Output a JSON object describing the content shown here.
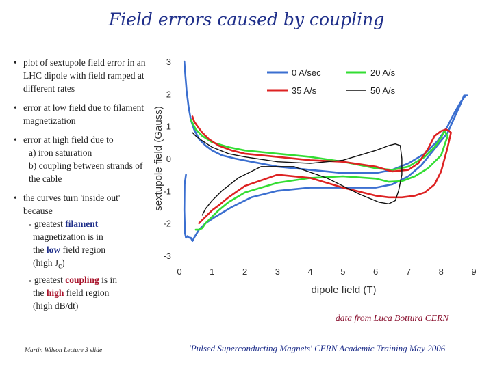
{
  "slide": {
    "title": "Field errors caused by coupling",
    "bullet1": "plot of sextupole field error in an LHC dipole with field ramped at different rates",
    "bullet2": "error at low field due to filament magnetization",
    "bullet3_main": "error at high field due to",
    "bullet3_a": "a) iron saturation",
    "bullet3_b": "b) coupling between strands of the cable",
    "bullet4_main": "the curves turn 'inside out' because",
    "b4_l1a": "- greatest ",
    "b4_l1b": "filament",
    "b4_l2": "magnetization is in",
    "b4_l3a": "the ",
    "b4_l3b": "low",
    "b4_l3c": " field region",
    "b4_l4a": "(high J",
    "b4_l4sub": "c",
    "b4_l4c": ")",
    "b4_l5a": "- greatest ",
    "b4_l5b": "coupling",
    "b4_l5c": " is in",
    "b4_l6a": "the ",
    "b4_l6b": "high",
    "b4_l6c": " field region",
    "b4_l7": "(high dB/dt)",
    "credit": "data from Luca Bottura CERN",
    "footer_left": "Martin Wilson Lecture 3 slide",
    "footer_right": "'Pulsed Superconducting Magnets' CERN Academic Training May 2006"
  },
  "chart_data": {
    "type": "line",
    "title": "",
    "xlabel": "dipole field (T)",
    "ylabel": "sextupole field (Gauss)",
    "xlim": [
      0,
      9
    ],
    "ylim": [
      -3,
      3
    ],
    "xticks": [
      "0",
      "1",
      "2",
      "3",
      "4",
      "5",
      "6",
      "7",
      "8",
      "9"
    ],
    "yticks": [
      "3",
      "2",
      "1",
      "0",
      "-1",
      "-2",
      "-3"
    ],
    "legend_position": "top-right",
    "series": [
      {
        "name": "0 A/sec",
        "color": "#3b6fd0",
        "x": [
          0.15,
          0.18,
          0.22,
          0.28,
          0.35,
          0.45,
          0.6,
          0.8,
          1.0,
          1.3,
          1.7,
          2.2,
          3,
          4,
          5,
          6,
          6.5,
          7,
          7.5,
          7.9,
          8.2,
          8.4,
          8.6,
          8.75,
          8.8,
          8.7,
          8.6,
          8.4,
          8.2,
          7.8,
          7.4,
          7,
          6.5,
          6,
          5,
          4,
          3,
          2.2,
          1.6,
          1.1,
          0.8,
          0.6,
          0.45,
          0.4,
          0.35,
          0.3,
          0.25,
          0.2,
          0.17,
          0.15,
          0.16,
          0.2
        ],
        "y": [
          3.0,
          2.6,
          2.1,
          1.6,
          1.2,
          0.9,
          0.6,
          0.4,
          0.25,
          0.1,
          0.0,
          -0.1,
          -0.25,
          -0.35,
          -0.45,
          -0.45,
          -0.35,
          -0.15,
          0.15,
          0.55,
          1.0,
          1.4,
          1.75,
          1.95,
          1.95,
          1.95,
          1.7,
          1.25,
          0.8,
          0.3,
          -0.2,
          -0.55,
          -0.8,
          -0.9,
          -0.9,
          -0.9,
          -1.0,
          -1.2,
          -1.5,
          -1.8,
          -2.0,
          -2.2,
          -2.45,
          -2.55,
          -2.45,
          -2.45,
          -2.4,
          -2.45,
          -2.3,
          -1.6,
          -0.8,
          -0.5
        ]
      },
      {
        "name": "20 A/s",
        "color": "#33dd33",
        "x": [
          0.35,
          0.4,
          0.5,
          0.7,
          1.0,
          1.5,
          2,
          3,
          4,
          5,
          6,
          6.5,
          7,
          7.5,
          7.8,
          8.0,
          8.1,
          8.2,
          8.0,
          7.6,
          7.2,
          6.8,
          6.4,
          6,
          5,
          4,
          3,
          2,
          1.5,
          1.2,
          1.0,
          0.8,
          0.7,
          0.6,
          0.5
        ],
        "y": [
          1.2,
          1.1,
          0.9,
          0.7,
          0.5,
          0.35,
          0.25,
          0.15,
          0.05,
          -0.1,
          -0.3,
          -0.35,
          -0.25,
          0.05,
          0.35,
          0.65,
          0.85,
          0.7,
          0.1,
          -0.3,
          -0.55,
          -0.7,
          -0.72,
          -0.62,
          -0.55,
          -0.6,
          -0.75,
          -1.05,
          -1.35,
          -1.6,
          -1.8,
          -2.0,
          -2.15,
          -2.2,
          -2.2
        ]
      },
      {
        "name": "35 A/s",
        "color": "#dd2222",
        "x": [
          0.4,
          0.45,
          0.55,
          0.7,
          0.9,
          1.2,
          1.6,
          2,
          3,
          4,
          5,
          6,
          6.5,
          7,
          7.3,
          7.6,
          7.8,
          8.0,
          8.15,
          8.25,
          8.3,
          8.2,
          8.0,
          7.8,
          7.5,
          7.2,
          6.8,
          6.4,
          6,
          5,
          4,
          3,
          2,
          1.5,
          1.2,
          1.0,
          0.8,
          0.6
        ],
        "y": [
          1.3,
          1.15,
          1.0,
          0.8,
          0.6,
          0.4,
          0.25,
          0.15,
          0.05,
          -0.05,
          -0.1,
          -0.25,
          -0.4,
          -0.35,
          -0.15,
          0.3,
          0.7,
          0.85,
          0.9,
          0.85,
          0.8,
          0.35,
          -0.4,
          -0.8,
          -1.05,
          -1.15,
          -1.2,
          -1.2,
          -1.15,
          -0.9,
          -0.6,
          -0.5,
          -0.85,
          -1.2,
          -1.45,
          -1.6,
          -1.8,
          -2.0
        ]
      },
      {
        "name": "50 A/s",
        "color": "#111111",
        "x": [
          0.4,
          0.5,
          0.7,
          1.0,
          1.5,
          2,
          3,
          4,
          5,
          5.5,
          6,
          6.4,
          6.6,
          6.75,
          6.8,
          6.8,
          6.7,
          6.6,
          6.4,
          6.1,
          5.5,
          4.5,
          3.5,
          2.5,
          1.8,
          1.3,
          1.0,
          0.8,
          0.7
        ],
        "y": [
          0.8,
          0.7,
          0.55,
          0.35,
          0.15,
          0.05,
          -0.1,
          -0.15,
          -0.05,
          0.1,
          0.25,
          0.4,
          0.45,
          0.4,
          0.0,
          -0.5,
          -1.0,
          -1.3,
          -1.4,
          -1.35,
          -1.1,
          -0.6,
          -0.25,
          -0.25,
          -0.6,
          -1.0,
          -1.3,
          -1.55,
          -1.75
        ]
      }
    ]
  }
}
